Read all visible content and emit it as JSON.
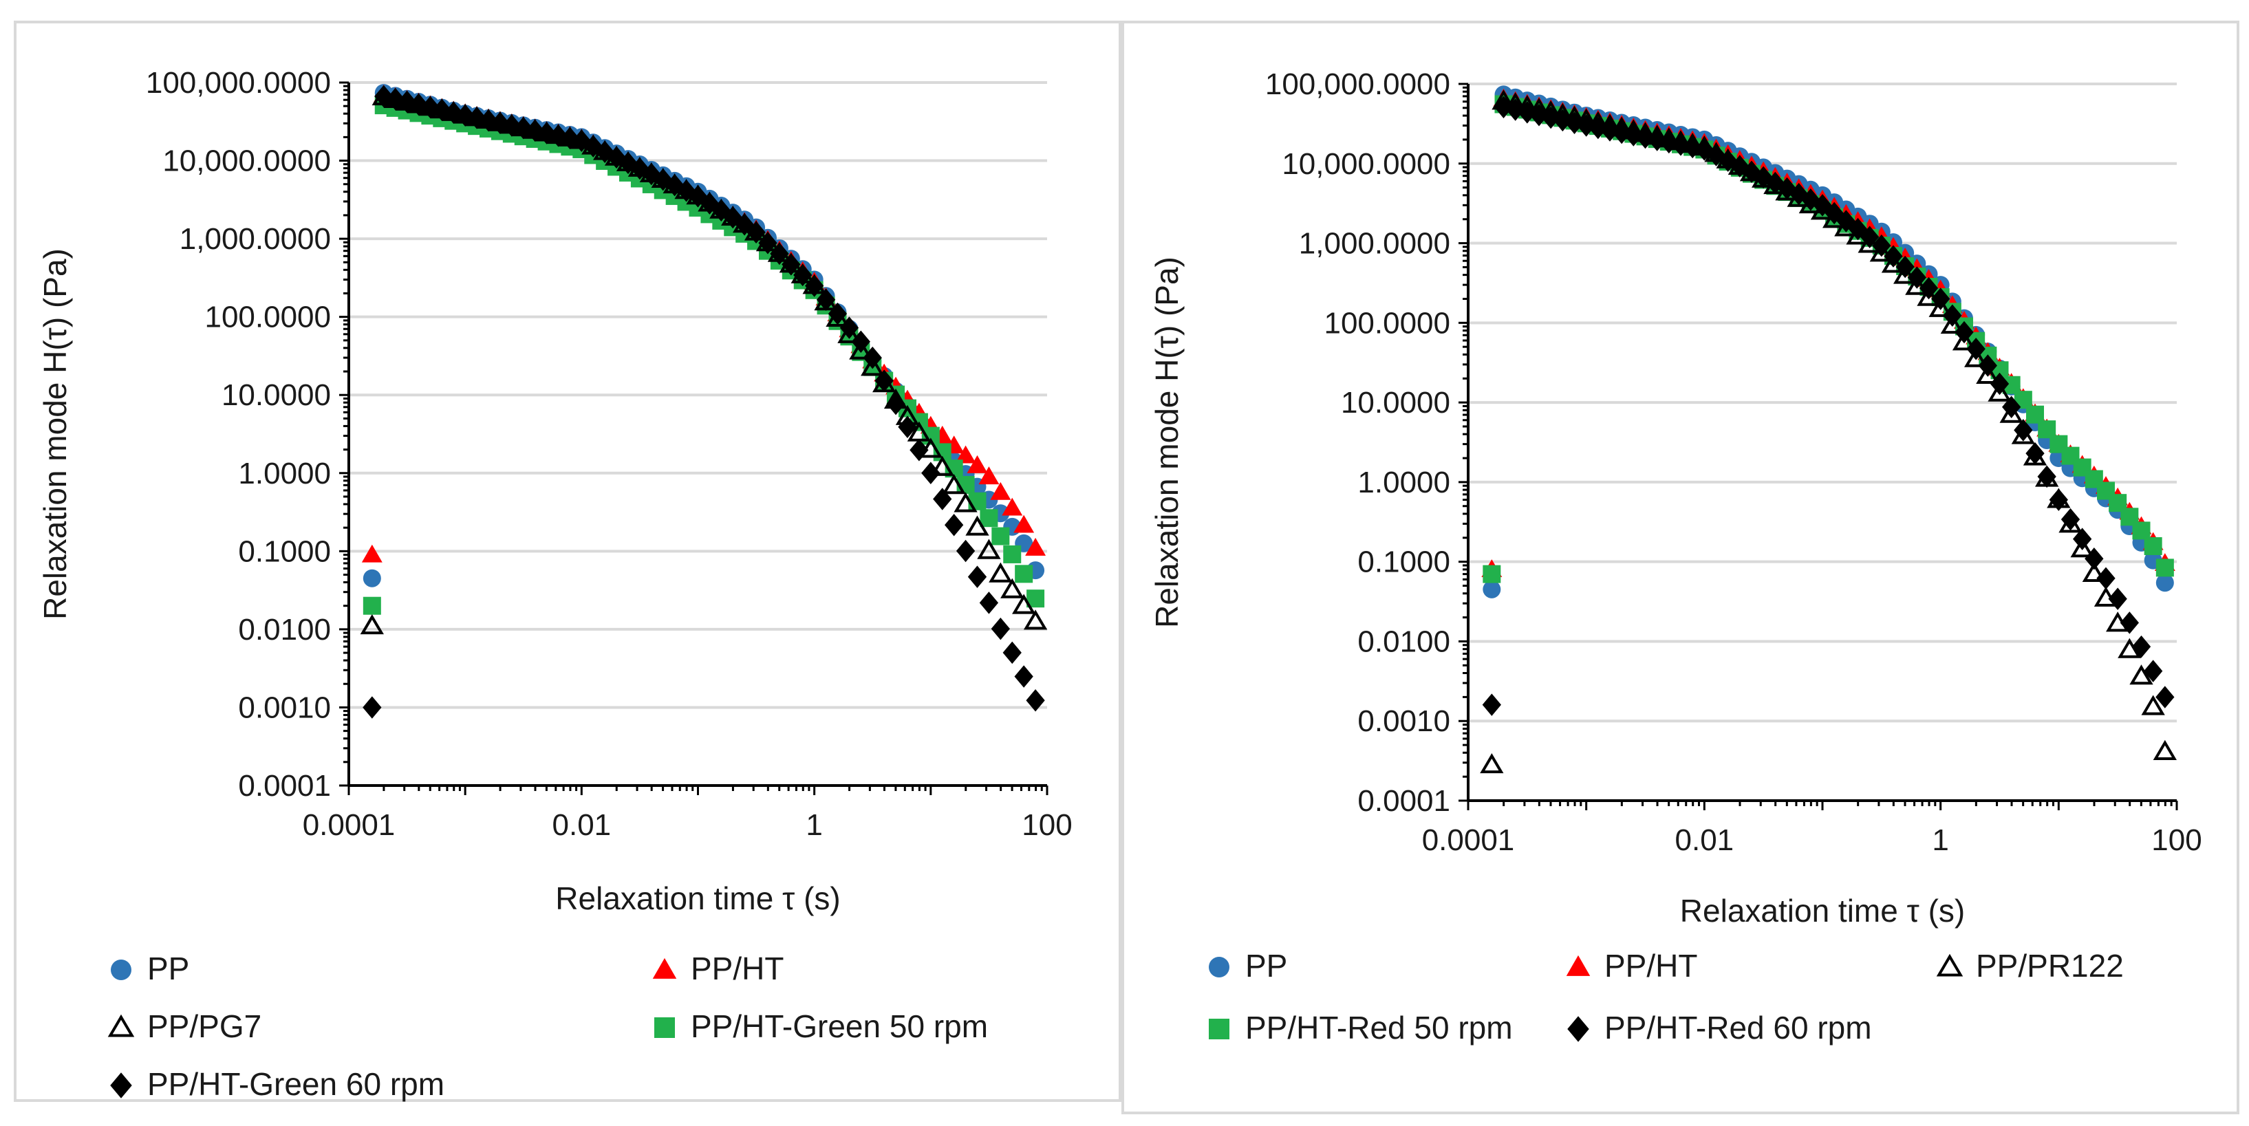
{
  "colors": {
    "PP": "#2e75b6",
    "PP/HT": "#ff0000",
    "hollow": "#000000",
    "green": "#22b14c",
    "black": "#000000",
    "grid": "#d9d9d9",
    "axis": "#000000"
  },
  "chart_data": [
    {
      "type": "scatter",
      "xlabel": "Relaxation time τ (s)",
      "ylabel": "Relaxation mode H(τ) (Pa)",
      "xscale": "log",
      "yscale": "log",
      "xlim": [
        0.0001,
        100
      ],
      "ylim": [
        0.0001,
        100000
      ],
      "x_ticks": [
        "0.0001",
        "0.01",
        "1",
        "100"
      ],
      "y_ticks": [
        "0.0001",
        "0.0010",
        "0.0100",
        "0.1000",
        "1.0000",
        "10.0000",
        "100.0000",
        "1,000.0000",
        "10,000.0000",
        "100,000.0000"
      ],
      "legend": [
        "PP",
        "PP/HT",
        "PP/PG7",
        "PP/HT-Green 50 rpm",
        "PP/HT-Green 60 rpm"
      ],
      "series": [
        {
          "name": "PP",
          "marker": "circle",
          "color": "#2e75b6",
          "x": [
            0.00016,
            0.001,
            0.01,
            0.1,
            0.3,
            1,
            3,
            10,
            30,
            60,
            85
          ],
          "y": [
            80000,
            40000,
            20000,
            4000,
            1500,
            300,
            30,
            3,
            0.5,
            0.15,
            0.045
          ]
        },
        {
          "name": "PP/HT",
          "marker": "triangle",
          "color": "#ff0000",
          "x": [
            0.00016,
            0.001,
            0.01,
            0.1,
            0.3,
            1,
            3,
            10,
            30,
            60,
            85
          ],
          "y": [
            75000,
            40000,
            19000,
            3500,
            1400,
            280,
            30,
            4,
            1,
            0.25,
            0.09
          ]
        },
        {
          "name": "PP/PG7",
          "marker": "triangle-open",
          "color": "#000000",
          "x": [
            0.00016,
            0.001,
            0.01,
            0.1,
            0.3,
            1,
            3,
            10,
            20,
            40,
            85
          ],
          "y": [
            70000,
            38000,
            18000,
            3500,
            1300,
            250,
            25,
            2,
            0.4,
            0.05,
            0.011
          ]
        },
        {
          "name": "PP/HT-Green 50 rpm",
          "marker": "square",
          "color": "#22b14c",
          "x": [
            0.00016,
            0.001,
            0.01,
            0.1,
            0.3,
            1,
            3,
            10,
            30,
            60,
            85
          ],
          "y": [
            55000,
            30000,
            14000,
            2500,
            1000,
            220,
            25,
            3,
            0.3,
            0.06,
            0.02
          ]
        },
        {
          "name": "PP/HT-Green 60 rpm",
          "marker": "diamond",
          "color": "#000000",
          "x": [
            0.00016,
            0.001,
            0.01,
            0.1,
            0.3,
            1,
            3,
            10,
            20,
            40,
            85
          ],
          "y": [
            72000,
            38000,
            18000,
            3500,
            1300,
            250,
            35,
            1,
            0.1,
            0.01,
            0.001
          ]
        }
      ]
    },
    {
      "type": "scatter",
      "xlabel": "Relaxation time τ (s)",
      "ylabel": "Relaxation mode H(τ) (Pa)",
      "xscale": "log",
      "yscale": "log",
      "xlim": [
        0.0001,
        100
      ],
      "ylim": [
        0.0001,
        100000
      ],
      "x_ticks": [
        "0.0001",
        "0.01",
        "1",
        "100"
      ],
      "y_ticks": [
        "0.0001",
        "0.0010",
        "0.0100",
        "0.1000",
        "1.0000",
        "10.0000",
        "100.0000",
        "1,000.0000",
        "10,000.0000",
        "100,000.0000"
      ],
      "legend": [
        "PP",
        "PP/HT",
        "PP/PR122",
        "PP/HT-Red 50 rpm",
        "PP/HT-Red 60 rpm"
      ],
      "series": [
        {
          "name": "PP",
          "marker": "circle",
          "color": "#2e75b6",
          "x": [
            0.00016,
            0.001,
            0.01,
            0.1,
            0.3,
            1,
            3,
            10,
            30,
            60,
            85
          ],
          "y": [
            80000,
            40000,
            20000,
            4000,
            1500,
            300,
            30,
            2,
            0.5,
            0.12,
            0.045
          ]
        },
        {
          "name": "PP/HT",
          "marker": "triangle",
          "color": "#ff0000",
          "x": [
            0.00016,
            0.001,
            0.01,
            0.1,
            0.3,
            1,
            3,
            10,
            30,
            60,
            85
          ],
          "y": [
            70000,
            38000,
            18000,
            3500,
            1300,
            260,
            30,
            3,
            0.7,
            0.2,
            0.08
          ]
        },
        {
          "name": "PP/PR122",
          "marker": "triangle-open",
          "color": "#000000",
          "x": [
            0.00016,
            0.001,
            0.01,
            0.1,
            0.3,
            1,
            3,
            10,
            30,
            60,
            85
          ],
          "y": [
            65000,
            35000,
            16000,
            2500,
            800,
            150,
            15,
            0.6,
            0.02,
            0.002,
            0.00028
          ]
        },
        {
          "name": "PP/HT-Red 50 rpm",
          "marker": "square",
          "color": "#22b14c",
          "x": [
            0.00016,
            0.001,
            0.01,
            0.1,
            0.3,
            1,
            3,
            10,
            30,
            60,
            85
          ],
          "y": [
            60000,
            32000,
            15000,
            2600,
            1000,
            210,
            28,
            3,
            0.6,
            0.18,
            0.07
          ]
        },
        {
          "name": "PP/HT-Red 60 rpm",
          "marker": "diamond",
          "color": "#000000",
          "x": [
            0.00016,
            0.001,
            0.01,
            0.1,
            0.3,
            1,
            3,
            10,
            30,
            60,
            85
          ],
          "y": [
            55000,
            30000,
            15000,
            3000,
            1000,
            200,
            20,
            0.6,
            0.04,
            0.005,
            0.0016
          ]
        }
      ]
    }
  ]
}
